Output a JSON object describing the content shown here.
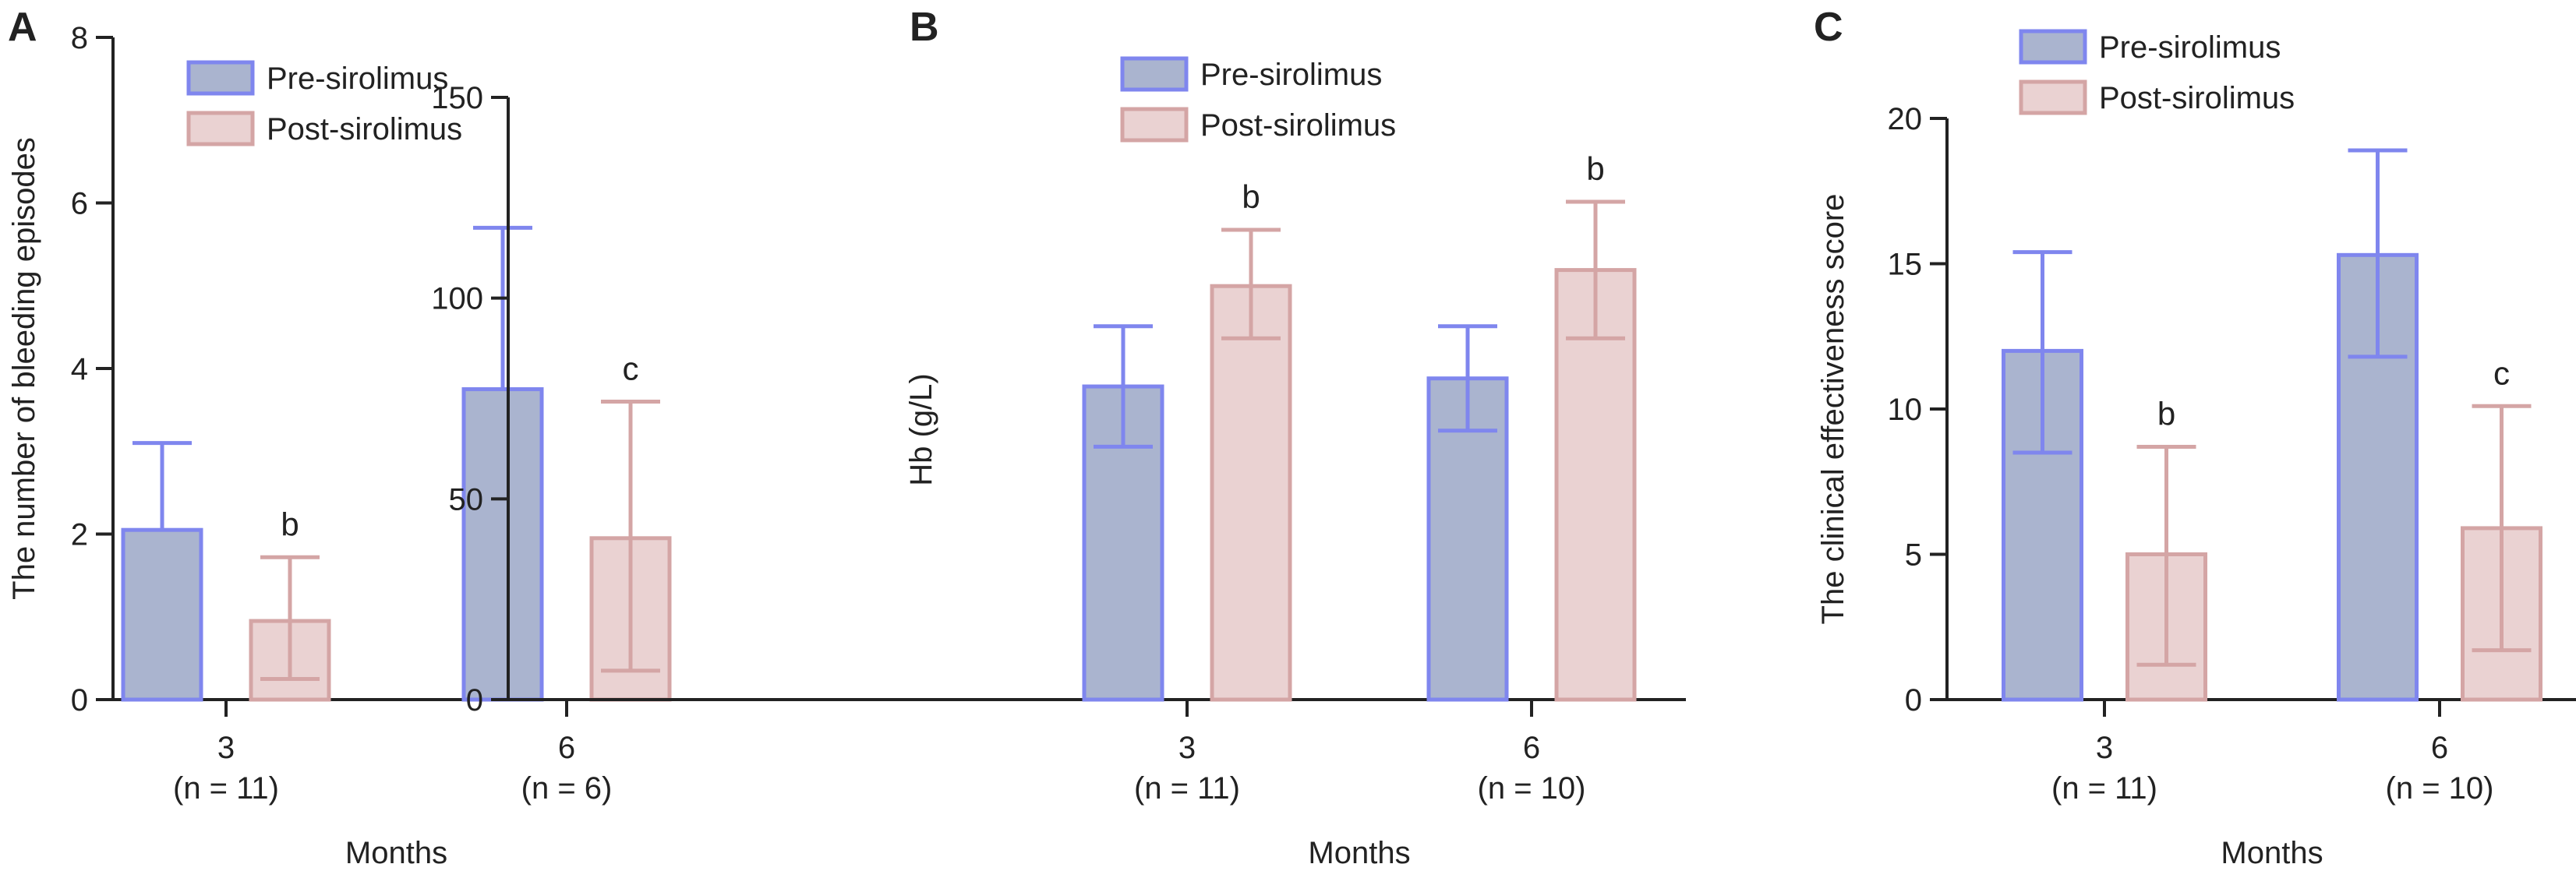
{
  "panel_letters": [
    "A",
    "B",
    "C"
  ],
  "colors": {
    "pre_fill": "#aab4cf",
    "pre_stroke": "#7f86ee",
    "post_fill": "#ead2d2",
    "post_stroke": "#d4a5a5",
    "axis": "#222222"
  },
  "chart_data": [
    {
      "type": "bar",
      "panel": "A",
      "xlabel": "Months",
      "ylabel": "The number of bleeding episodes",
      "ylim": [
        0,
        8
      ],
      "yticks": [
        "0",
        "2",
        "4",
        "6",
        "8"
      ],
      "categories": [
        "3",
        "6"
      ],
      "category_sublabels": [
        "(n = 11)",
        "(n = 6)"
      ],
      "legend_position": "top-left",
      "series": [
        {
          "name": "Pre-sirolimus",
          "values": [
            2.05,
            3.75
          ],
          "err_high": [
            3.1,
            5.7
          ]
        },
        {
          "name": "Post-sirolimus",
          "values": [
            0.95,
            1.95
          ],
          "err_high": [
            1.72,
            3.6
          ],
          "err_low": [
            0.25,
            0.35
          ]
        }
      ],
      "annotations": [
        {
          "series": 1,
          "category": 0,
          "text": "b"
        },
        {
          "series": 1,
          "category": 1,
          "text": "c"
        }
      ]
    },
    {
      "type": "bar",
      "panel": "B",
      "xlabel": "Months",
      "ylabel": "Hb (g/L)",
      "ylim": [
        0,
        150
      ],
      "yticks": [
        "0",
        "50",
        "100",
        "150"
      ],
      "categories": [
        "3",
        "6"
      ],
      "category_sublabels": [
        "(n = 11)",
        "(n = 10)"
      ],
      "legend_position": "top-left",
      "series": [
        {
          "name": "Pre-sirolimus",
          "values": [
            78,
            80
          ],
          "err_high": [
            93,
            93
          ],
          "err_low": [
            63,
            67
          ]
        },
        {
          "name": "Post-sirolimus",
          "values": [
            103,
            107
          ],
          "err_high": [
            117,
            124
          ],
          "err_low": [
            90,
            90
          ]
        }
      ],
      "annotations": [
        {
          "series": 1,
          "category": 0,
          "text": "b"
        },
        {
          "series": 1,
          "category": 1,
          "text": "b"
        }
      ]
    },
    {
      "type": "bar",
      "panel": "C",
      "xlabel": "Months",
      "ylabel": "The clinical effectiveness score",
      "ylim": [
        0,
        20
      ],
      "yticks": [
        "0",
        "5",
        "10",
        "15",
        "20"
      ],
      "categories": [
        "3",
        "6"
      ],
      "category_sublabels": [
        "(n = 11)",
        "(n = 10)"
      ],
      "legend_position": "top-left",
      "series": [
        {
          "name": "Pre-sirolimus",
          "values": [
            12.0,
            15.3
          ],
          "err_high": [
            15.4,
            18.9
          ],
          "err_low": [
            8.5,
            11.8
          ]
        },
        {
          "name": "Post-sirolimus",
          "values": [
            5.0,
            5.9
          ],
          "err_high": [
            8.7,
            10.1
          ],
          "err_low": [
            1.2,
            1.7
          ]
        }
      ],
      "annotations": [
        {
          "series": 1,
          "category": 0,
          "text": "b"
        },
        {
          "series": 1,
          "category": 1,
          "text": "c"
        }
      ]
    }
  ]
}
